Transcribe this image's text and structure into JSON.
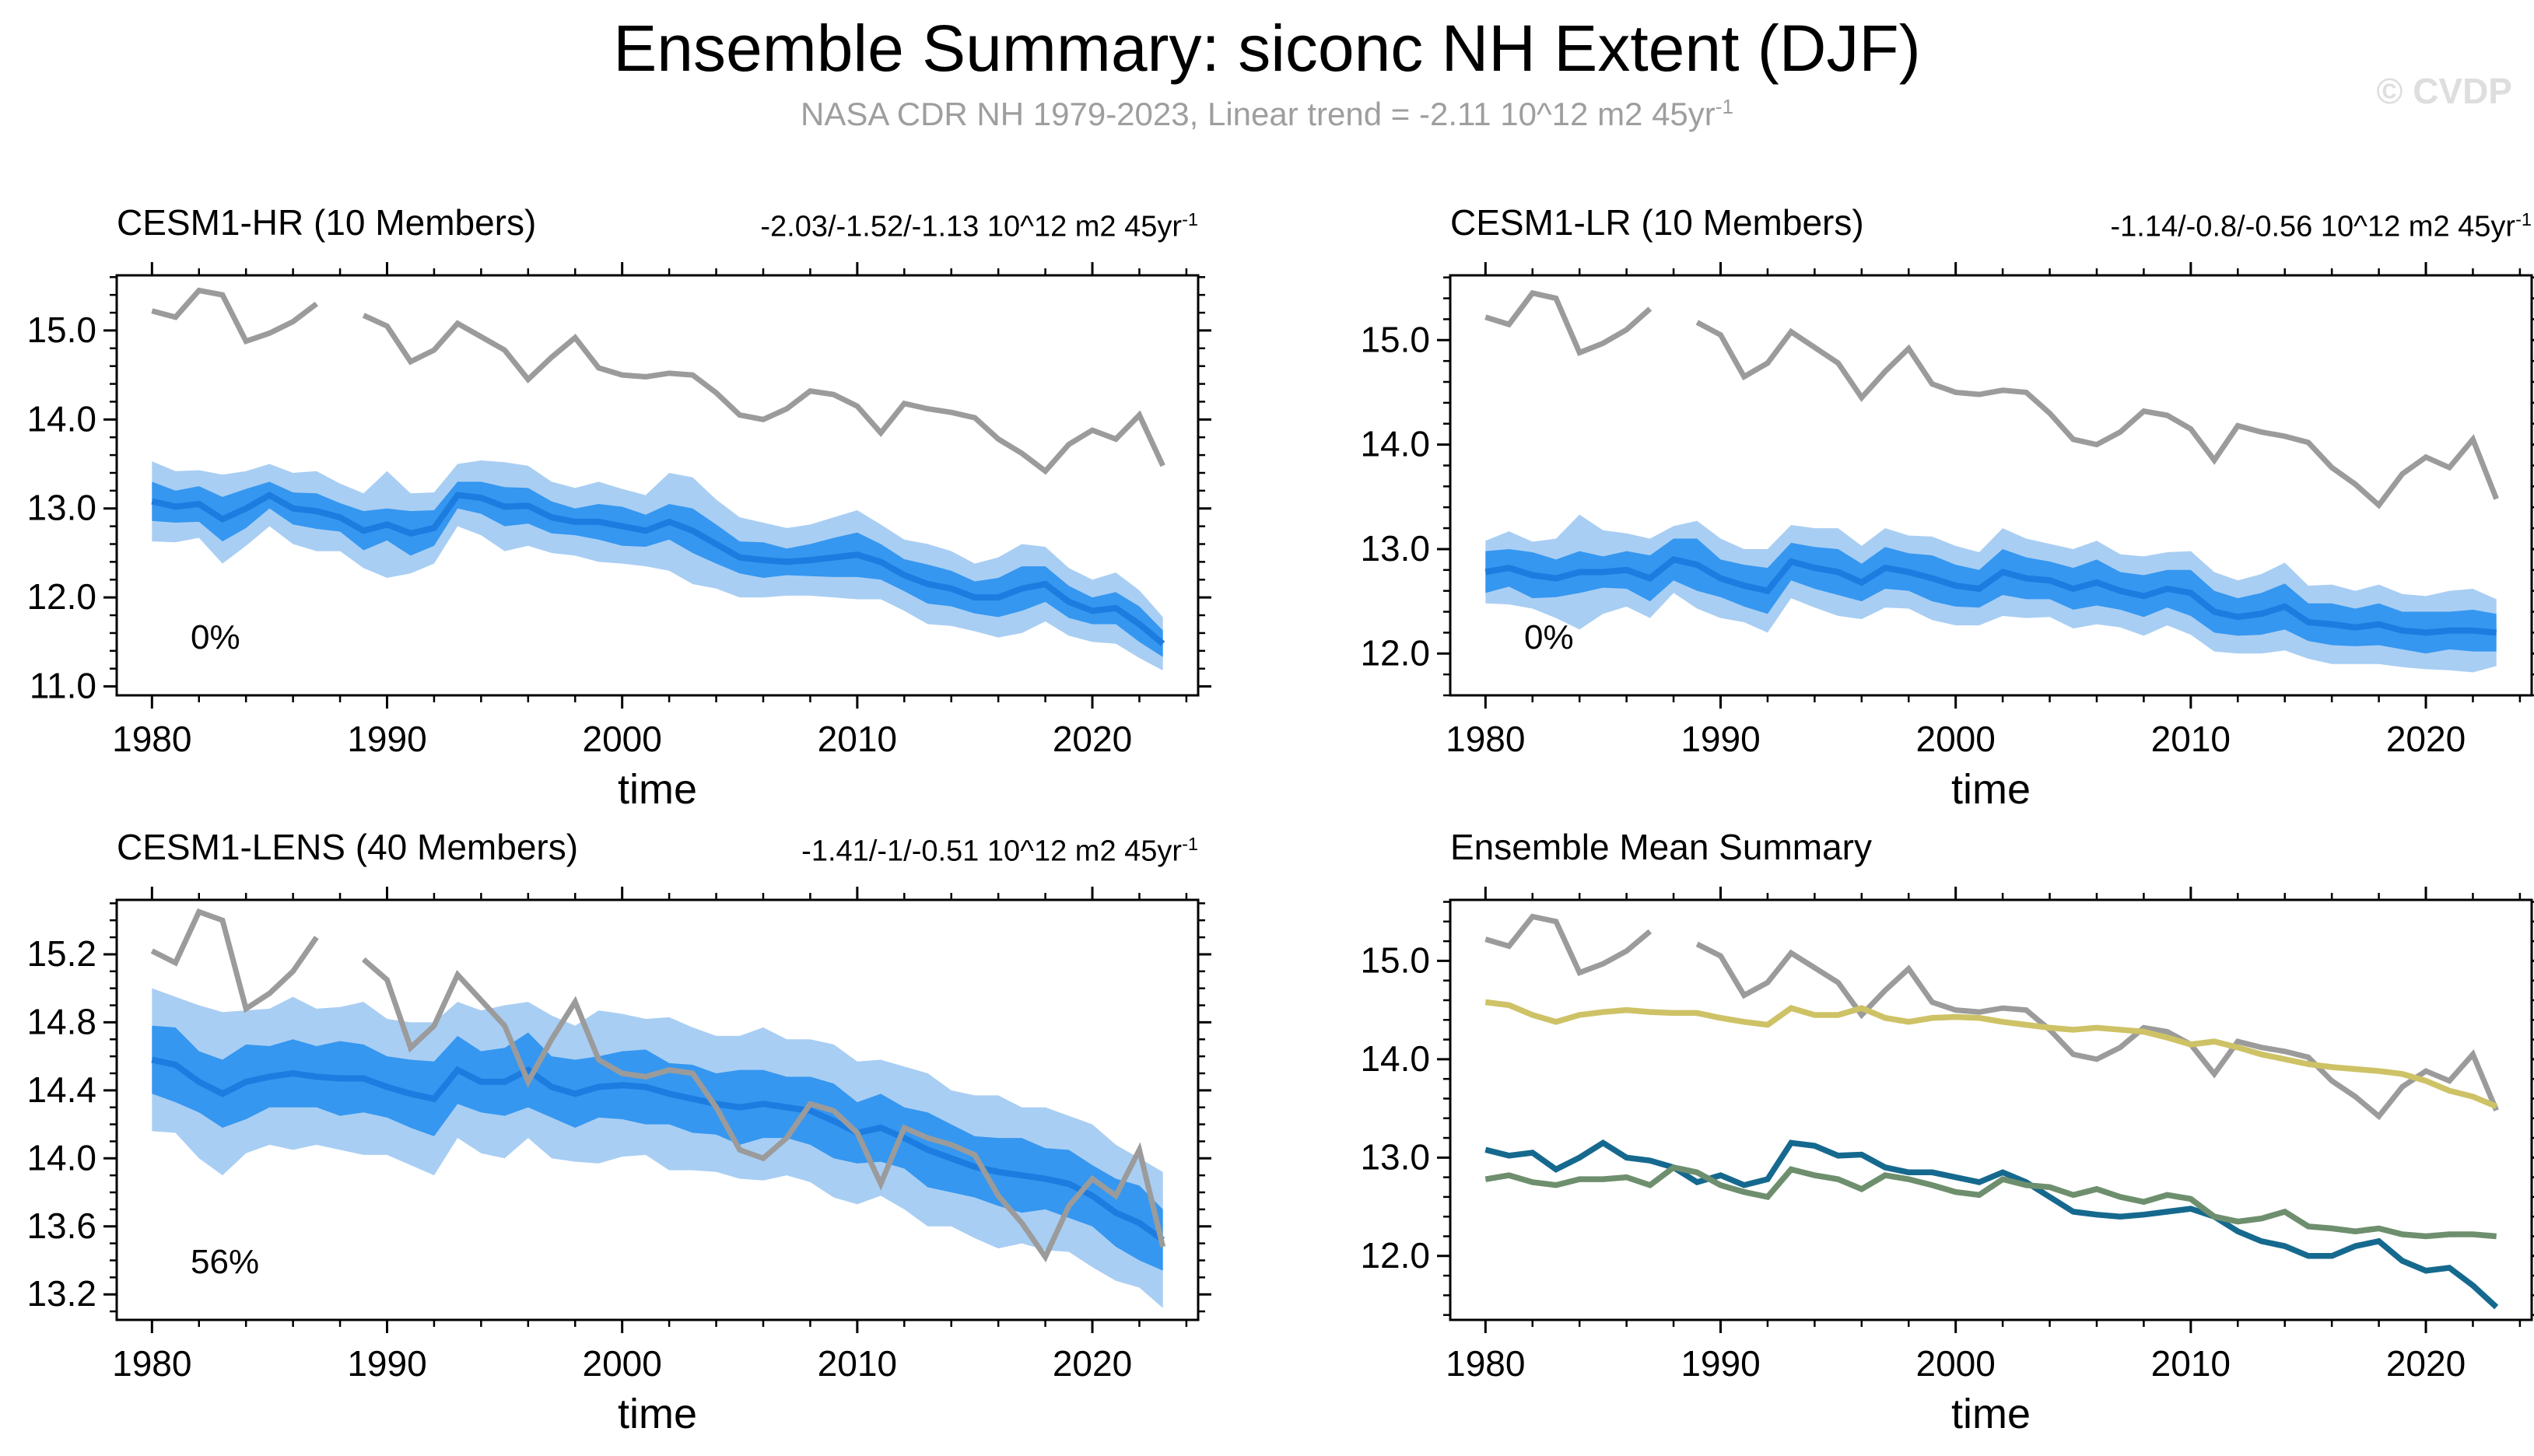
{
  "page": {
    "title": "Ensemble Summary: siconc NH Extent (DJF)",
    "subtitle_text": "NASA CDR NH 1979-2023, Linear trend = -2.11 10^12 m2 45yr",
    "subtitle_sup": "-1",
    "watermark": "© CVDP"
  },
  "chart_data": {
    "type": "line",
    "title": "Ensemble Summary: siconc NH Extent (DJF)",
    "subtitle": "NASA CDR NH 1979-2023, Linear trend = -2.11 10^12 m2 45yr^-1",
    "units": "10^12 m2",
    "xlabel": "time",
    "xlim": [
      1978.5,
      2024.5
    ],
    "xticks": [
      1980,
      1990,
      2000,
      2010,
      2020
    ],
    "xminor": 2,
    "grid": false,
    "years": [
      1980,
      1981,
      1982,
      1983,
      1984,
      1985,
      1986,
      1987,
      1988,
      1989,
      1990,
      1991,
      1992,
      1993,
      1994,
      1995,
      1996,
      1997,
      1998,
      1999,
      2000,
      2001,
      2002,
      2003,
      2004,
      2005,
      2006,
      2007,
      2008,
      2009,
      2010,
      2011,
      2012,
      2013,
      2014,
      2015,
      2016,
      2017,
      2018,
      2019,
      2020,
      2021,
      2022,
      2023
    ],
    "observations": {
      "name": "NASA CDR NH",
      "color": "#9b9b9b",
      "values": [
        15.22,
        15.15,
        15.45,
        15.4,
        14.88,
        14.97,
        15.1,
        15.3,
        null,
        15.17,
        15.05,
        14.65,
        14.78,
        15.08,
        14.93,
        14.78,
        14.45,
        14.7,
        14.92,
        14.58,
        14.5,
        14.48,
        14.52,
        14.5,
        14.3,
        14.05,
        14.0,
        14.12,
        14.32,
        14.28,
        14.15,
        13.85,
        14.18,
        14.12,
        14.08,
        14.02,
        13.78,
        13.62,
        13.42,
        13.72,
        13.88,
        13.78,
        14.05,
        13.48
      ]
    },
    "band_colors": {
      "outer": "#a9cef3",
      "inner": "#3597f0",
      "mean": "#1d7ce0"
    },
    "panels": [
      {
        "title": "CESM1-HR (10 Members)",
        "title_color": "#16698e",
        "trend": "-2.03/-1.52/-1.13 10^12 m2 45yr",
        "trend_sup": "-1",
        "percent_label": "0%",
        "xlabel": "time",
        "ylim": [
          10.9,
          15.62
        ],
        "yticks": [
          11.0,
          12.0,
          13.0,
          14.0,
          15.0
        ],
        "yminor": 0.2,
        "band": {
          "mean": [
            13.08,
            13.02,
            13.05,
            12.88,
            13.0,
            13.15,
            13.0,
            12.97,
            12.9,
            12.75,
            12.82,
            12.72,
            12.78,
            13.15,
            13.12,
            13.02,
            13.03,
            12.9,
            12.85,
            12.85,
            12.8,
            12.75,
            12.85,
            12.75,
            12.6,
            12.45,
            12.42,
            12.4,
            12.42,
            12.45,
            12.48,
            12.4,
            12.25,
            12.15,
            12.1,
            12.0,
            12.0,
            12.1,
            12.15,
            11.95,
            11.85,
            11.88,
            11.7,
            11.48
          ],
          "inner_hw": [
            0.22,
            0.18,
            0.2,
            0.25,
            0.22,
            0.15,
            0.18,
            0.2,
            0.16,
            0.22,
            0.18,
            0.25,
            0.2,
            0.15,
            0.18,
            0.22,
            0.2,
            0.18,
            0.15,
            0.2,
            0.22,
            0.18,
            0.2,
            0.25,
            0.22,
            0.18,
            0.2,
            0.15,
            0.18,
            0.22,
            0.25,
            0.2,
            0.18,
            0.22,
            0.2,
            0.18,
            0.22,
            0.25,
            0.2,
            0.18,
            0.15,
            0.18,
            0.2,
            0.15
          ],
          "outer_hw": [
            0.45,
            0.4,
            0.38,
            0.5,
            0.42,
            0.35,
            0.4,
            0.45,
            0.38,
            0.42,
            0.6,
            0.45,
            0.4,
            0.35,
            0.42,
            0.5,
            0.45,
            0.4,
            0.38,
            0.45,
            0.42,
            0.4,
            0.55,
            0.6,
            0.5,
            0.45,
            0.42,
            0.38,
            0.4,
            0.45,
            0.5,
            0.42,
            0.4,
            0.45,
            0.42,
            0.38,
            0.45,
            0.5,
            0.42,
            0.38,
            0.35,
            0.4,
            0.38,
            0.3
          ]
        }
      },
      {
        "title": "CESM1-LR (10 Members)",
        "title_color": "#6e8f6e",
        "trend": "-1.14/-0.8/-0.56 10^12 m2 45yr",
        "trend_sup": "-1",
        "percent_label": "0%",
        "xlabel": "time",
        "ylim": [
          11.6,
          15.62
        ],
        "yticks": [
          12.0,
          13.0,
          14.0,
          15.0
        ],
        "yminor": 0.2,
        "band": {
          "mean": [
            12.78,
            12.82,
            12.75,
            12.72,
            12.78,
            12.78,
            12.8,
            12.72,
            12.9,
            12.85,
            12.72,
            12.65,
            12.6,
            12.88,
            12.82,
            12.78,
            12.68,
            12.82,
            12.78,
            12.72,
            12.65,
            12.62,
            12.78,
            12.72,
            12.7,
            12.62,
            12.68,
            12.6,
            12.55,
            12.62,
            12.58,
            12.4,
            12.35,
            12.38,
            12.45,
            12.3,
            12.28,
            12.25,
            12.28,
            12.22,
            12.2,
            12.22,
            12.22,
            12.2
          ],
          "inner_hw": [
            0.2,
            0.18,
            0.22,
            0.18,
            0.2,
            0.15,
            0.18,
            0.22,
            0.2,
            0.25,
            0.18,
            0.2,
            0.22,
            0.18,
            0.2,
            0.22,
            0.18,
            0.2,
            0.18,
            0.22,
            0.2,
            0.18,
            0.22,
            0.2,
            0.18,
            0.2,
            0.22,
            0.18,
            0.2,
            0.18,
            0.22,
            0.2,
            0.18,
            0.2,
            0.22,
            0.18,
            0.2,
            0.18,
            0.2,
            0.18,
            0.2,
            0.18,
            0.2,
            0.18
          ],
          "outer_hw": [
            0.3,
            0.35,
            0.32,
            0.38,
            0.55,
            0.4,
            0.35,
            0.38,
            0.32,
            0.42,
            0.38,
            0.35,
            0.4,
            0.35,
            0.38,
            0.42,
            0.35,
            0.38,
            0.35,
            0.4,
            0.38,
            0.35,
            0.42,
            0.38,
            0.35,
            0.38,
            0.4,
            0.35,
            0.38,
            0.35,
            0.4,
            0.38,
            0.35,
            0.38,
            0.42,
            0.35,
            0.38,
            0.35,
            0.38,
            0.35,
            0.35,
            0.38,
            0.4,
            0.32
          ]
        }
      },
      {
        "title": "CESM1-LENS (40 Members)",
        "title_color": "#cec266",
        "trend": "-1.41/-1/-0.51 10^12 m2 45yr",
        "trend_sup": "-1",
        "percent_label": "56%",
        "xlabel": "time",
        "ylim": [
          13.05,
          15.52
        ],
        "yticks": [
          13.2,
          13.6,
          14.0,
          14.4,
          14.8,
          15.2
        ],
        "yminor": 0.1,
        "band": {
          "mean": [
            14.58,
            14.55,
            14.45,
            14.38,
            14.45,
            14.48,
            14.5,
            14.48,
            14.47,
            14.47,
            14.42,
            14.38,
            14.35,
            14.52,
            14.45,
            14.45,
            14.52,
            14.42,
            14.38,
            14.42,
            14.43,
            14.42,
            14.38,
            14.35,
            14.32,
            14.3,
            14.32,
            14.3,
            14.28,
            14.22,
            14.15,
            14.18,
            14.12,
            14.05,
            14.0,
            13.95,
            13.92,
            13.9,
            13.88,
            13.85,
            13.78,
            13.68,
            13.62,
            13.52
          ],
          "inner_hw": [
            0.2,
            0.22,
            0.18,
            0.2,
            0.22,
            0.18,
            0.2,
            0.18,
            0.22,
            0.2,
            0.18,
            0.2,
            0.22,
            0.2,
            0.18,
            0.2,
            0.22,
            0.18,
            0.2,
            0.18,
            0.2,
            0.22,
            0.18,
            0.2,
            0.18,
            0.22,
            0.2,
            0.18,
            0.2,
            0.22,
            0.18,
            0.2,
            0.18,
            0.22,
            0.2,
            0.18,
            0.2,
            0.22,
            0.18,
            0.2,
            0.18,
            0.2,
            0.22,
            0.18
          ],
          "outer_hw": [
            0.42,
            0.4,
            0.45,
            0.48,
            0.42,
            0.4,
            0.45,
            0.4,
            0.42,
            0.45,
            0.4,
            0.42,
            0.45,
            0.4,
            0.42,
            0.45,
            0.4,
            0.42,
            0.4,
            0.45,
            0.42,
            0.4,
            0.45,
            0.42,
            0.4,
            0.42,
            0.45,
            0.4,
            0.42,
            0.45,
            0.42,
            0.4,
            0.42,
            0.45,
            0.4,
            0.42,
            0.45,
            0.4,
            0.42,
            0.4,
            0.42,
            0.4,
            0.38,
            0.4
          ]
        }
      },
      {
        "title": "Ensemble Mean Summary",
        "title_color": "#000000",
        "trend": null,
        "trend_sup": null,
        "percent_label": null,
        "xlabel": "time",
        "ylim": [
          11.35,
          15.62
        ],
        "yticks": [
          12.0,
          13.0,
          14.0,
          15.0
        ],
        "yminor": 0.2,
        "series_refs": [
          {
            "name": "CESM1-LENS",
            "panel": 2,
            "color": "#cec266"
          },
          {
            "name": "CESM1-HR",
            "panel": 0,
            "color": "#16698e"
          },
          {
            "name": "CESM1-LR",
            "panel": 1,
            "color": "#6e8f6e"
          }
        ]
      }
    ]
  }
}
